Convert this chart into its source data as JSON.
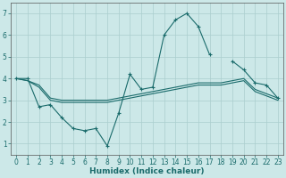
{
  "xlabel": "Humidex (Indice chaleur)",
  "x_values": [
    0,
    1,
    2,
    3,
    4,
    5,
    6,
    7,
    8,
    9,
    10,
    11,
    12,
    13,
    14,
    15,
    16,
    17,
    18,
    19,
    20,
    21,
    22,
    23
  ],
  "line1": [
    4.0,
    4.0,
    2.7,
    2.8,
    2.2,
    1.7,
    1.6,
    1.7,
    0.9,
    2.4,
    4.2,
    3.5,
    3.6,
    6.0,
    6.7,
    7.0,
    6.4,
    5.1,
    null,
    4.8,
    4.4,
    3.8,
    3.7,
    3.1
  ],
  "line2": [
    4.0,
    3.9,
    3.7,
    3.1,
    3.0,
    3.0,
    3.0,
    3.0,
    3.0,
    3.1,
    3.2,
    3.3,
    3.4,
    3.5,
    3.6,
    3.7,
    3.8,
    3.8,
    3.8,
    3.9,
    4.0,
    3.5,
    3.3,
    3.1
  ],
  "line3": [
    4.0,
    3.9,
    3.6,
    3.0,
    2.9,
    2.9,
    2.9,
    2.9,
    2.9,
    3.0,
    3.1,
    3.2,
    3.3,
    3.4,
    3.5,
    3.6,
    3.7,
    3.7,
    3.7,
    3.8,
    3.9,
    3.4,
    3.2,
    3.0
  ],
  "bg_color": "#cce8e8",
  "line_color": "#1a6b6b",
  "grid_color": "#aacece",
  "ylim": [
    0.5,
    7.5
  ],
  "yticks": [
    1,
    2,
    3,
    4,
    5,
    6,
    7
  ],
  "xlim": [
    -0.5,
    23.5
  ],
  "tick_fontsize": 5.5,
  "xlabel_fontsize": 6.5
}
